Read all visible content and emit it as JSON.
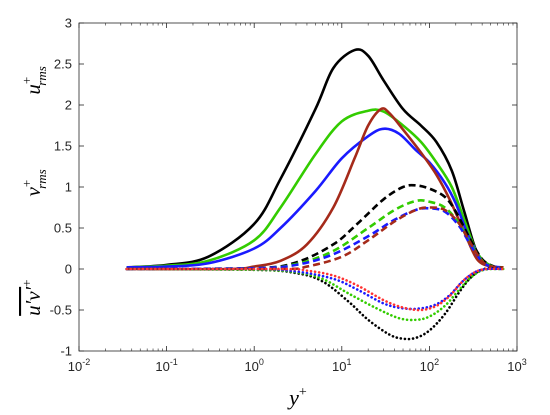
{
  "chart_data": {
    "type": "line",
    "xscale": "log",
    "xlim": [
      0.01,
      1000
    ],
    "ylim": [
      -1,
      3
    ],
    "x_ticks": [
      0.01,
      0.1,
      1,
      10,
      100,
      1000
    ],
    "x_tick_labels": [
      {
        "base": "10",
        "exp": "-2"
      },
      {
        "base": "10",
        "exp": "-1"
      },
      {
        "base": "10",
        "exp": "0"
      },
      {
        "base": "10",
        "exp": "1"
      },
      {
        "base": "10",
        "exp": "2"
      },
      {
        "base": "10",
        "exp": "3"
      }
    ],
    "y_ticks": [
      -1,
      -0.5,
      0,
      0.5,
      1,
      1.5,
      2,
      2.5,
      3
    ],
    "y_tick_labels": [
      "-1",
      "-0.5",
      "0",
      "0.5",
      "1",
      "1.5",
      "2",
      "2.5",
      "3"
    ],
    "xlabel": {
      "base": "y",
      "sup": "+"
    },
    "ylabels": [
      {
        "base": "u",
        "sup": "+",
        "sub": "rms",
        "y": 2.3
      },
      {
        "base": "v",
        "sup": "+",
        "sub": "rms",
        "y": 1.05
      },
      {
        "base": "u′v′",
        "sup": "+",
        "overline": true,
        "y": -0.35
      }
    ],
    "grid": false,
    "legend": "none",
    "series": [
      {
        "color": "#000000",
        "style": "solid",
        "points": [
          [
            0.035,
            0.02
          ],
          [
            0.1,
            0.05
          ],
          [
            0.3,
            0.15
          ],
          [
            1,
            0.55
          ],
          [
            2,
            1.1
          ],
          [
            5,
            1.95
          ],
          [
            8,
            2.45
          ],
          [
            14,
            2.67
          ],
          [
            20,
            2.6
          ],
          [
            30,
            2.3
          ],
          [
            50,
            1.95
          ],
          [
            80,
            1.75
          ],
          [
            120,
            1.55
          ],
          [
            180,
            1.2
          ],
          [
            250,
            0.7
          ],
          [
            350,
            0.2
          ],
          [
            500,
            0.04
          ],
          [
            700,
            0.02
          ]
        ]
      },
      {
        "color": "#33cc00",
        "style": "solid",
        "points": [
          [
            0.035,
            0.02
          ],
          [
            0.1,
            0.04
          ],
          [
            0.3,
            0.1
          ],
          [
            1,
            0.35
          ],
          [
            2,
            0.75
          ],
          [
            5,
            1.4
          ],
          [
            10,
            1.8
          ],
          [
            20,
            1.93
          ],
          [
            30,
            1.92
          ],
          [
            50,
            1.75
          ],
          [
            80,
            1.55
          ],
          [
            120,
            1.3
          ],
          [
            180,
            1.0
          ],
          [
            250,
            0.6
          ],
          [
            350,
            0.2
          ],
          [
            500,
            0.04
          ],
          [
            700,
            0.02
          ]
        ]
      },
      {
        "color": "#1a1aff",
        "style": "solid",
        "points": [
          [
            0.035,
            0.02
          ],
          [
            0.1,
            0.03
          ],
          [
            0.3,
            0.07
          ],
          [
            1,
            0.25
          ],
          [
            2,
            0.5
          ],
          [
            5,
            0.95
          ],
          [
            10,
            1.35
          ],
          [
            20,
            1.62
          ],
          [
            30,
            1.71
          ],
          [
            45,
            1.65
          ],
          [
            70,
            1.45
          ],
          [
            100,
            1.3
          ],
          [
            150,
            1.05
          ],
          [
            200,
            0.8
          ],
          [
            280,
            0.4
          ],
          [
            400,
            0.1
          ],
          [
            550,
            0.03
          ],
          [
            700,
            0.02
          ]
        ]
      },
      {
        "color": "#a52a1a",
        "style": "solid",
        "points": [
          [
            0.035,
            0.0
          ],
          [
            0.5,
            0.0
          ],
          [
            1,
            0.03
          ],
          [
            2,
            0.1
          ],
          [
            4,
            0.3
          ],
          [
            8,
            0.75
          ],
          [
            14,
            1.35
          ],
          [
            20,
            1.75
          ],
          [
            28,
            1.95
          ],
          [
            35,
            1.9
          ],
          [
            50,
            1.7
          ],
          [
            80,
            1.42
          ],
          [
            120,
            1.15
          ],
          [
            170,
            0.85
          ],
          [
            250,
            0.45
          ],
          [
            350,
            0.12
          ],
          [
            500,
            0.03
          ],
          [
            700,
            0.02
          ]
        ]
      },
      {
        "color": "#000000",
        "style": "dashed",
        "points": [
          [
            0.035,
            0.0
          ],
          [
            1,
            0.01
          ],
          [
            3,
            0.08
          ],
          [
            8,
            0.3
          ],
          [
            15,
            0.55
          ],
          [
            30,
            0.85
          ],
          [
            50,
            1.0
          ],
          [
            70,
            1.02
          ],
          [
            100,
            0.98
          ],
          [
            150,
            0.88
          ],
          [
            200,
            0.7
          ],
          [
            280,
            0.4
          ],
          [
            400,
            0.12
          ],
          [
            550,
            0.03
          ],
          [
            700,
            0.02
          ]
        ]
      },
      {
        "color": "#33cc00",
        "style": "dashed",
        "points": [
          [
            0.035,
            0.0
          ],
          [
            1,
            0.01
          ],
          [
            3,
            0.06
          ],
          [
            8,
            0.22
          ],
          [
            20,
            0.5
          ],
          [
            40,
            0.72
          ],
          [
            70,
            0.83
          ],
          [
            100,
            0.82
          ],
          [
            150,
            0.75
          ],
          [
            220,
            0.55
          ],
          [
            300,
            0.3
          ],
          [
            420,
            0.08
          ],
          [
            600,
            0.02
          ],
          [
            700,
            0.02
          ]
        ]
      },
      {
        "color": "#1a1aff",
        "style": "dashed",
        "points": [
          [
            0.035,
            0.0
          ],
          [
            1,
            0.01
          ],
          [
            3,
            0.05
          ],
          [
            8,
            0.18
          ],
          [
            20,
            0.4
          ],
          [
            40,
            0.6
          ],
          [
            70,
            0.72
          ],
          [
            100,
            0.74
          ],
          [
            150,
            0.7
          ],
          [
            220,
            0.52
          ],
          [
            300,
            0.28
          ],
          [
            420,
            0.07
          ],
          [
            600,
            0.02
          ],
          [
            700,
            0.02
          ]
        ]
      },
      {
        "color": "#a52a1a",
        "style": "dashed",
        "points": [
          [
            0.035,
            0.0
          ],
          [
            2,
            0.0
          ],
          [
            4,
            0.03
          ],
          [
            10,
            0.15
          ],
          [
            20,
            0.35
          ],
          [
            40,
            0.58
          ],
          [
            70,
            0.72
          ],
          [
            100,
            0.75
          ],
          [
            150,
            0.72
          ],
          [
            220,
            0.55
          ],
          [
            300,
            0.3
          ],
          [
            420,
            0.07
          ],
          [
            600,
            0.02
          ],
          [
            700,
            0.02
          ]
        ]
      },
      {
        "color": "#000000",
        "style": "dotted",
        "points": [
          [
            0.035,
            0.0
          ],
          [
            1,
            -0.01
          ],
          [
            3,
            -0.05
          ],
          [
            6,
            -0.15
          ],
          [
            12,
            -0.4
          ],
          [
            20,
            -0.62
          ],
          [
            35,
            -0.8
          ],
          [
            50,
            -0.85
          ],
          [
            70,
            -0.84
          ],
          [
            100,
            -0.75
          ],
          [
            150,
            -0.55
          ],
          [
            220,
            -0.28
          ],
          [
            300,
            -0.1
          ],
          [
            420,
            0.0
          ],
          [
            700,
            0.0
          ]
        ]
      },
      {
        "color": "#33cc00",
        "style": "dotted",
        "points": [
          [
            0.035,
            0.0
          ],
          [
            1,
            -0.01
          ],
          [
            3,
            -0.04
          ],
          [
            6,
            -0.12
          ],
          [
            12,
            -0.3
          ],
          [
            25,
            -0.48
          ],
          [
            45,
            -0.6
          ],
          [
            70,
            -0.62
          ],
          [
            100,
            -0.58
          ],
          [
            150,
            -0.45
          ],
          [
            220,
            -0.25
          ],
          [
            300,
            -0.1
          ],
          [
            420,
            -0.01
          ],
          [
            700,
            0.0
          ]
        ]
      },
      {
        "color": "#1a1aff",
        "style": "dotted",
        "points": [
          [
            0.035,
            0.0
          ],
          [
            1,
            0.0
          ],
          [
            3,
            -0.03
          ],
          [
            8,
            -0.12
          ],
          [
            15,
            -0.25
          ],
          [
            30,
            -0.42
          ],
          [
            50,
            -0.48
          ],
          [
            80,
            -0.48
          ],
          [
            120,
            -0.43
          ],
          [
            170,
            -0.32
          ],
          [
            240,
            -0.15
          ],
          [
            330,
            -0.04
          ],
          [
            450,
            0.0
          ],
          [
            700,
            0.0
          ]
        ]
      },
      {
        "color": "#ff3333",
        "style": "dotted",
        "points": [
          [
            0.035,
            0.0
          ],
          [
            2,
            0.0
          ],
          [
            4,
            -0.02
          ],
          [
            8,
            -0.08
          ],
          [
            15,
            -0.2
          ],
          [
            30,
            -0.38
          ],
          [
            50,
            -0.47
          ],
          [
            80,
            -0.5
          ],
          [
            120,
            -0.45
          ],
          [
            170,
            -0.33
          ],
          [
            240,
            -0.15
          ],
          [
            330,
            -0.04
          ],
          [
            450,
            0.0
          ],
          [
            700,
            0.0
          ]
        ]
      }
    ]
  }
}
